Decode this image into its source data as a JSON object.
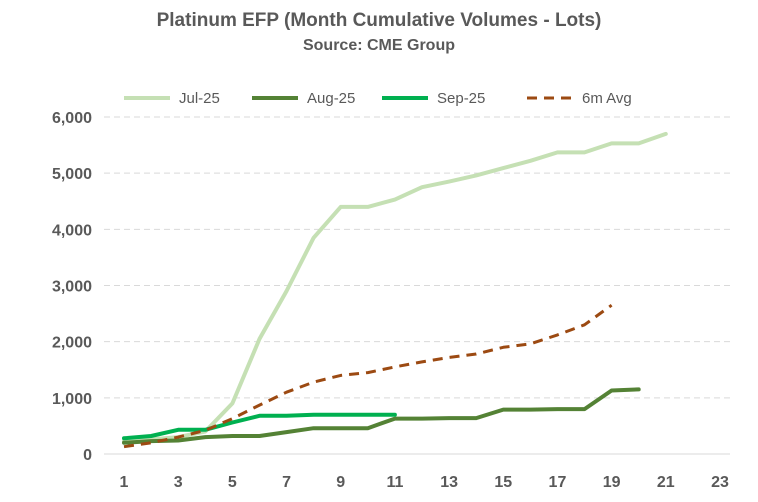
{
  "chart_data": {
    "type": "line",
    "title": "Platinum EFP (Month Cumulative Volumes - Lots)",
    "subtitle": "Source: CME Group",
    "xlabel": "",
    "ylabel": "",
    "xlim": [
      1,
      23
    ],
    "ylim": [
      0,
      6000
    ],
    "x_ticks": [
      1,
      3,
      5,
      7,
      9,
      11,
      13,
      15,
      17,
      19,
      21,
      23
    ],
    "y_ticks": [
      0,
      1000,
      2000,
      3000,
      4000,
      5000,
      6000
    ],
    "y_tick_labels": [
      "0",
      "1,000",
      "2,000",
      "3,000",
      "4,000",
      "5,000",
      "6,000"
    ],
    "grid": "horizontal dashed",
    "legend_position": "top",
    "series": [
      {
        "name": "Jul-25",
        "color": "#c5e0b4",
        "style": "solid",
        "x": [
          1,
          2,
          3,
          4,
          5,
          6,
          7,
          8,
          9,
          10,
          11,
          12,
          13,
          14,
          15,
          16,
          17,
          18,
          19,
          20,
          21
        ],
        "values": [
          230,
          260,
          300,
          400,
          900,
          2050,
          2900,
          3850,
          4400,
          4400,
          4530,
          4750,
          4850,
          4960,
          5090,
          5220,
          5370,
          5370,
          5530,
          5530,
          5700
        ]
      },
      {
        "name": "Aug-25",
        "color": "#548235",
        "style": "solid",
        "x": [
          1,
          2,
          3,
          4,
          5,
          6,
          7,
          8,
          9,
          10,
          11,
          12,
          13,
          14,
          15,
          16,
          17,
          18,
          19,
          20
        ],
        "values": [
          200,
          230,
          240,
          300,
          320,
          320,
          390,
          460,
          460,
          460,
          630,
          630,
          640,
          640,
          790,
          790,
          800,
          800,
          1130,
          1150
        ]
      },
      {
        "name": "Sep-25",
        "color": "#00b050",
        "style": "solid",
        "x": [
          1,
          2,
          3,
          4,
          5,
          6,
          7,
          8,
          9,
          10,
          11
        ],
        "values": [
          280,
          320,
          430,
          430,
          560,
          680,
          680,
          700,
          700,
          700,
          700
        ]
      },
      {
        "name": "6m Avg",
        "color": "#9c4a12",
        "style": "dashed",
        "x": [
          1,
          2,
          3,
          4,
          5,
          6,
          7,
          8,
          9,
          10,
          11,
          12,
          13,
          14,
          15,
          16,
          17,
          18,
          19
        ],
        "values": [
          130,
          200,
          300,
          420,
          630,
          870,
          1100,
          1280,
          1400,
          1450,
          1550,
          1640,
          1720,
          1780,
          1900,
          1960,
          2120,
          2300,
          2650
        ]
      }
    ]
  }
}
